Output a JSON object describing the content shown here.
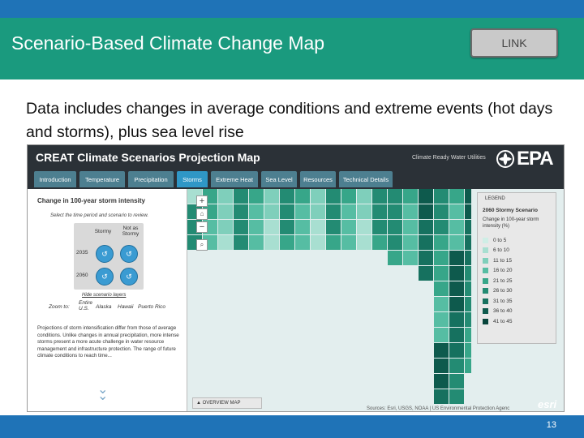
{
  "slide": {
    "title": "Scenario-Based Climate Change Map",
    "link_label": "LINK",
    "caption": "Data includes changes in average conditions and extreme events (hot days and storms), plus sea level rise",
    "page_number": "13"
  },
  "app": {
    "title": "CREAT Climate Scenarios Projection Map",
    "partner": "Climate Ready Water Utilities",
    "logo_text": "EPA",
    "tabs": [
      "Introduction",
      "Temperature",
      "Precipitation",
      "Storms",
      "Extreme Heat",
      "Sea Level",
      "Resources",
      "Technical Details"
    ],
    "active_tab": "Storms"
  },
  "panel": {
    "heading": "Change in 100-year storm intensity",
    "instruction": "Select the time period and scenario to review.",
    "col_headers": [
      "Stormy",
      "Not as Stormy"
    ],
    "rows": [
      "2035",
      "2060"
    ],
    "hide_label": "Hide scenario layers",
    "zoom_label": "Zoom to:",
    "zoom_links": [
      "Entire U.S.",
      "Alaska",
      "Hawaii",
      "Puerto Rico"
    ],
    "description": "Projections of storm intensification differ from those of average conditions. Unlike changes in annual precipitation, more intense storms present a more acute challenge in water resource management and infrastructure protection. The range of future climate conditions to reach time..."
  },
  "map": {
    "zoom_in": "+",
    "zoom_out": "−",
    "legend": {
      "title": "LEGEND",
      "scenario": "2060 Stormy Scenario",
      "description": "Change in 100-year storm intensity (%)",
      "items": [
        {
          "label": "0 to 5",
          "color": "#cfeee6"
        },
        {
          "label": "6 to 10",
          "color": "#a8dfd1"
        },
        {
          "label": "11 to 15",
          "color": "#7fcfbb"
        },
        {
          "label": "16 to 20",
          "color": "#56bda3"
        },
        {
          "label": "21 to 25",
          "color": "#37a689"
        },
        {
          "label": "26 to 30",
          "color": "#238b73"
        },
        {
          "label": "31 to 35",
          "color": "#16715f"
        },
        {
          "label": "36 to 40",
          "color": "#0e5a4d"
        },
        {
          "label": "41 to 45",
          "color": "#07443b"
        }
      ]
    },
    "overview_label": "OVERVIEW MAP",
    "sources": "Sources: Esri, USGS, NOAA | US Environmental Protection Agenc",
    "esri_label": "esri"
  }
}
